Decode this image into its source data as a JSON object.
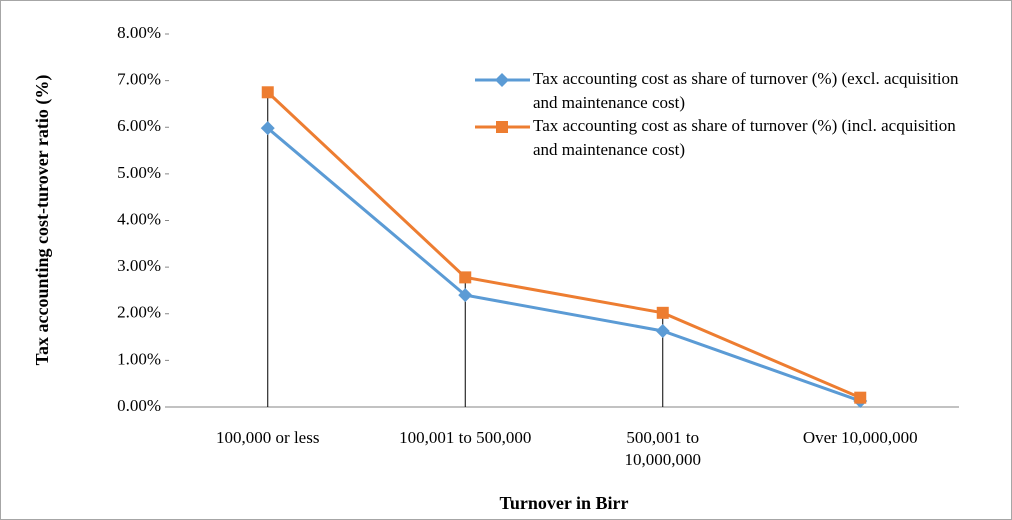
{
  "chart_data": {
    "type": "line",
    "x_label": "Turnover in Birr",
    "y_label": "Tax accounting cost-turover ratio (%)",
    "categories": [
      "100,000 or less",
      "100,001 to 500,000",
      "500,001 to 10,000,000",
      "Over 10,000,000"
    ],
    "series": [
      {
        "name": "Tax accounting cost as share of turnover (%) (excl. acquisition and maintenance cost)",
        "color": "#5b9bd5",
        "marker": "diamond",
        "values": [
          5.98,
          2.4,
          1.63,
          0.13
        ]
      },
      {
        "name": "Tax accounting cost as share of turnover (%) (incl. acquisition and maintenance cost)",
        "color": "#ed7d31",
        "marker": "square",
        "values": [
          6.75,
          2.78,
          2.02,
          0.2
        ]
      }
    ],
    "ylim": [
      0,
      8
    ],
    "yticks": [
      {
        "value": 0,
        "label": "0.00%"
      },
      {
        "value": 1,
        "label": "1.00%"
      },
      {
        "value": 2,
        "label": "2.00%"
      },
      {
        "value": 3,
        "label": "3.00%"
      },
      {
        "value": 4,
        "label": "4.00%"
      },
      {
        "value": 5,
        "label": "5.00%"
      },
      {
        "value": 6,
        "label": "6.00%"
      },
      {
        "value": 7,
        "label": "7.00%"
      },
      {
        "value": 8,
        "label": "8.00%"
      }
    ],
    "drop_lines": true,
    "legend": "top-right"
  }
}
